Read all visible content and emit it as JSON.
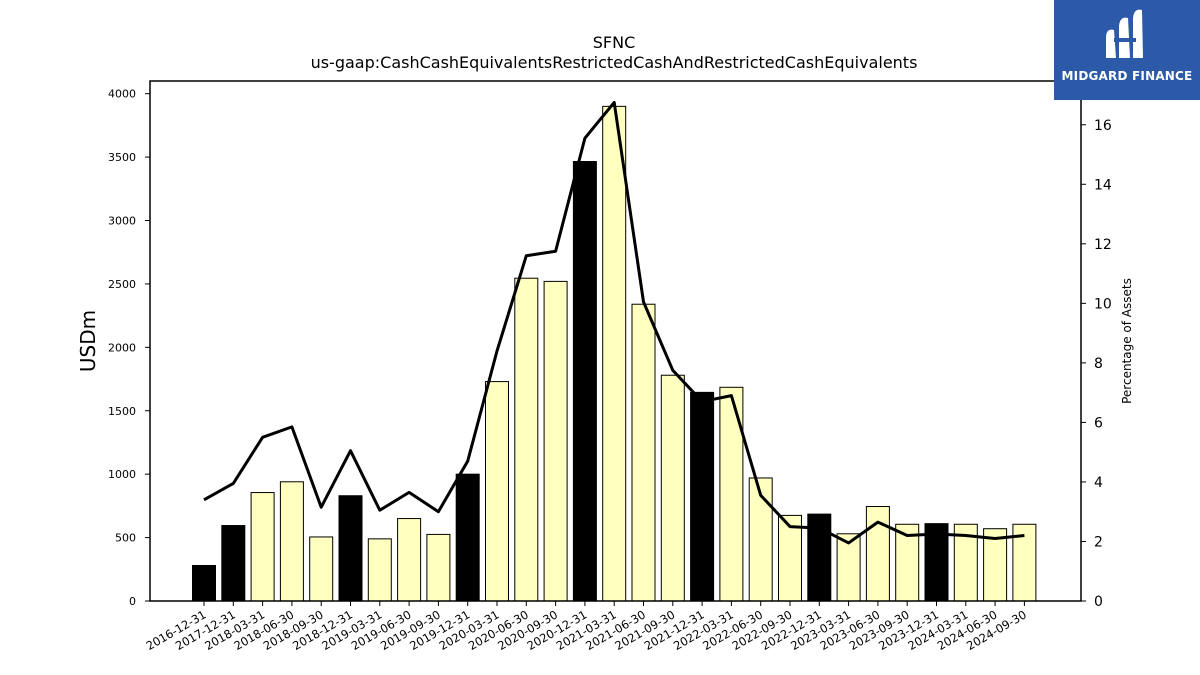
{
  "chart_data": {
    "type": "bar",
    "title": "SFNC",
    "subtitle": "us-gaap:CashCashEquivalentsRestrictedCashAndRestrictedCashEquivalents",
    "ylabel": "USDm",
    "y2label": "Percentage of Assets",
    "ylim": [
      0,
      4100
    ],
    "y2lim": [
      0,
      17.47
    ],
    "yticks": [
      0,
      500,
      1000,
      1500,
      2000,
      2500,
      3000,
      3500,
      4000
    ],
    "y2ticks": [
      0,
      2,
      4,
      6,
      8,
      10,
      12,
      14,
      16
    ],
    "categories": [
      "2016-12-31",
      "2017-12-31",
      "2018-03-31",
      "2018-06-30",
      "2018-09-30",
      "2018-12-31",
      "2019-03-31",
      "2019-06-30",
      "2019-09-30",
      "2019-12-31",
      "2020-03-31",
      "2020-06-30",
      "2020-09-30",
      "2020-12-31",
      "2021-03-31",
      "2021-06-30",
      "2021-09-30",
      "2021-12-31",
      "2022-03-31",
      "2022-06-30",
      "2022-09-30",
      "2022-12-31",
      "2023-03-31",
      "2023-06-30",
      "2023-09-30",
      "2023-12-31",
      "2024-03-31",
      "2024-06-30",
      "2024-09-30"
    ],
    "series": [
      {
        "type": "bar",
        "values": [
          280,
          595,
          855,
          940,
          505,
          830,
          490,
          650,
          525,
          1000,
          1730,
          2545,
          2520,
          3465,
          3900,
          2340,
          1780,
          1645,
          1685,
          970,
          675,
          685,
          530,
          745,
          605,
          610,
          605,
          570,
          605
        ],
        "year_end": [
          true,
          true,
          false,
          false,
          false,
          true,
          false,
          false,
          false,
          true,
          false,
          false,
          false,
          true,
          false,
          false,
          false,
          true,
          false,
          false,
          false,
          true,
          false,
          false,
          false,
          true,
          false,
          false,
          false
        ]
      },
      {
        "type": "line",
        "axis": "right",
        "values": [
          3.4,
          3.95,
          5.5,
          5.85,
          3.15,
          5.05,
          3.05,
          3.65,
          3.0,
          4.7,
          8.4,
          11.6,
          11.75,
          15.55,
          16.75,
          10.05,
          7.75,
          6.7,
          6.9,
          3.55,
          2.5,
          2.45,
          1.95,
          2.65,
          2.2,
          2.25,
          2.2,
          2.1,
          2.2
        ]
      }
    ],
    "colors": {
      "year_end_bar": "#000000",
      "quarter_bar": "#ffffc0",
      "line": "#000000"
    },
    "legend": "none",
    "grid": false
  },
  "logo": {
    "text": "MIDGARD FINANCE"
  }
}
